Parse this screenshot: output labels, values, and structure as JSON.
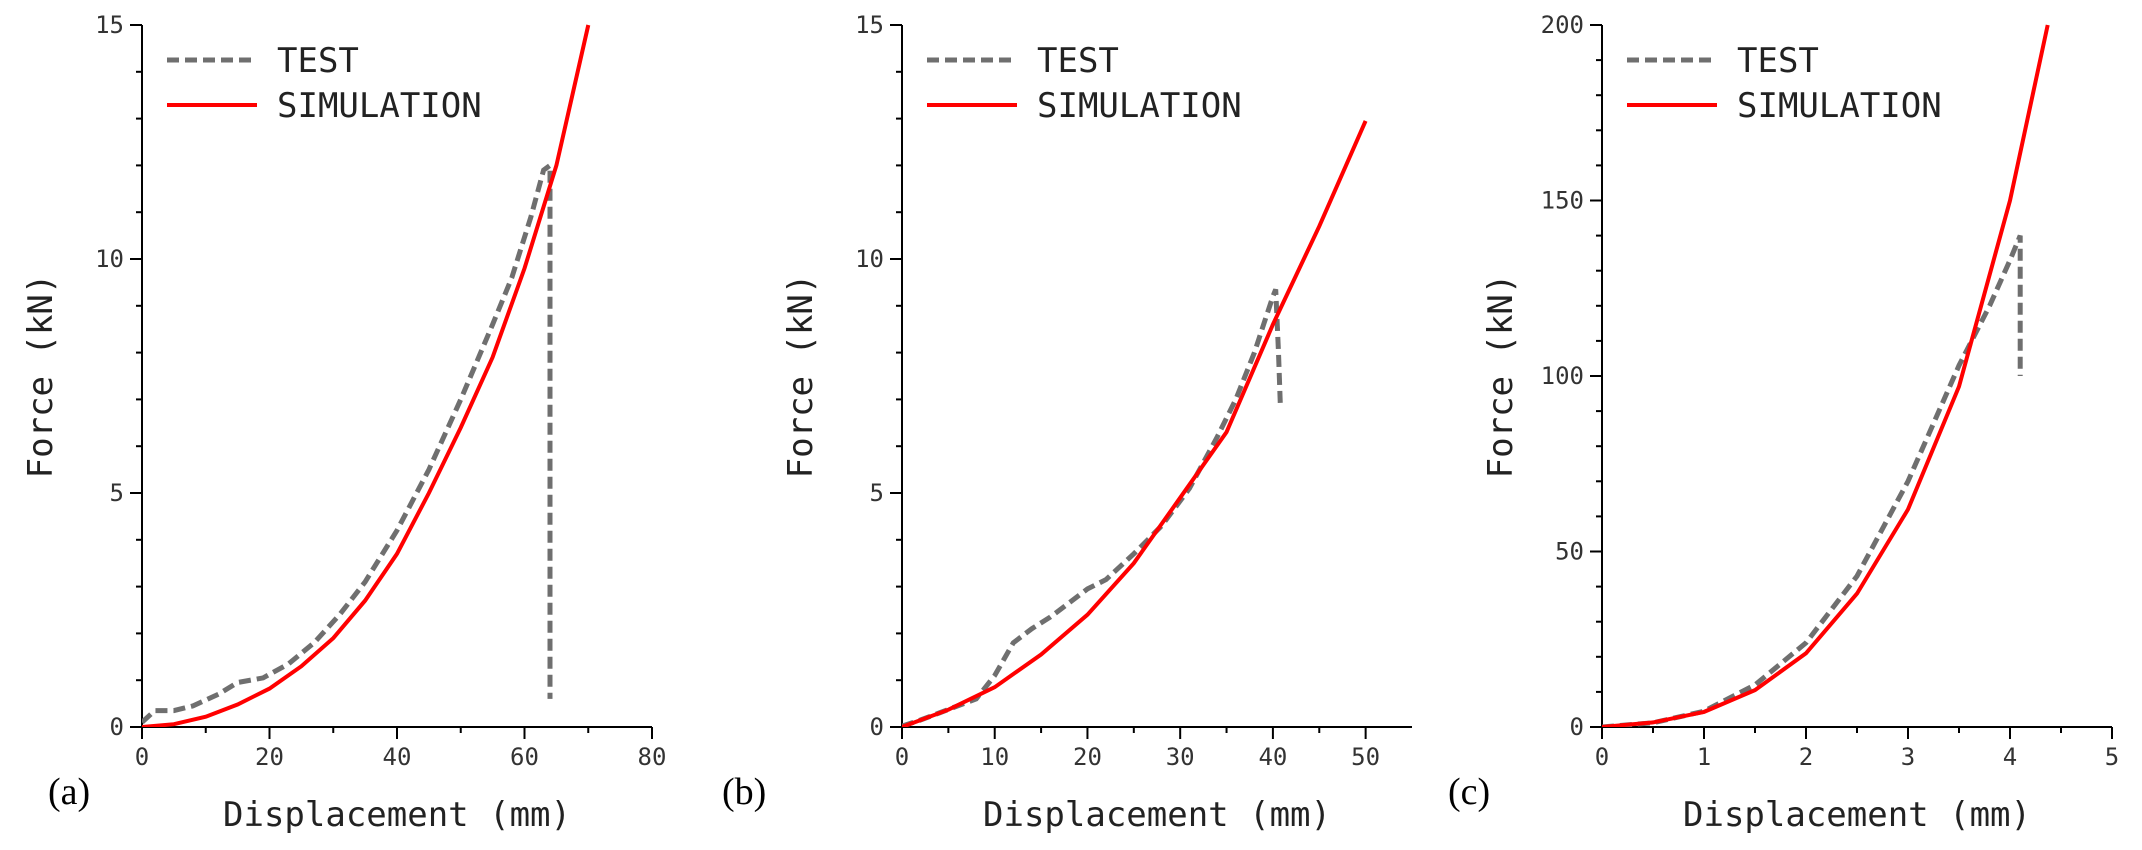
{
  "chart_data": [
    {
      "type": "line",
      "panel_label": "(a)",
      "xlabel": "Displacement (mm)",
      "ylabel": "Force (kN)",
      "xlim": [
        0,
        80
      ],
      "ylim": [
        0,
        15
      ],
      "xticks": [
        0,
        20,
        40,
        60,
        80
      ],
      "yticks": [
        0,
        5,
        10,
        15
      ],
      "legend_position": "top-left",
      "series": [
        {
          "name": "TEST",
          "color": "#6f6f6f",
          "style": "dashed",
          "points": [
            [
              0,
              0.1
            ],
            [
              2,
              0.35
            ],
            [
              5,
              0.35
            ],
            [
              8,
              0.45
            ],
            [
              12,
              0.7
            ],
            [
              15,
              0.95
            ],
            [
              19,
              1.05
            ],
            [
              23,
              1.35
            ],
            [
              27,
              1.8
            ],
            [
              31,
              2.4
            ],
            [
              35,
              3.1
            ],
            [
              40,
              4.2
            ],
            [
              45,
              5.5
            ],
            [
              50,
              7.0
            ],
            [
              55,
              8.6
            ],
            [
              58,
              9.6
            ],
            [
              61,
              10.9
            ],
            [
              63,
              11.9
            ],
            [
              64,
              12.0
            ],
            [
              64,
              0.6
            ]
          ]
        },
        {
          "name": "SIMULATION",
          "color": "#ff0000",
          "style": "solid",
          "points": [
            [
              0,
              0
            ],
            [
              5,
              0.06
            ],
            [
              10,
              0.22
            ],
            [
              15,
              0.48
            ],
            [
              20,
              0.82
            ],
            [
              25,
              1.3
            ],
            [
              30,
              1.9
            ],
            [
              35,
              2.7
            ],
            [
              40,
              3.7
            ],
            [
              45,
              5.0
            ],
            [
              50,
              6.4
            ],
            [
              55,
              7.9
            ],
            [
              60,
              9.8
            ],
            [
              65,
              12.0
            ],
            [
              70,
              15.0
            ]
          ]
        }
      ]
    },
    {
      "type": "line",
      "panel_label": "(b)",
      "xlabel": "Displacement (mm)",
      "ylabel": "Force (kN)",
      "xlim": [
        0,
        55
      ],
      "ylim": [
        0,
        15
      ],
      "xticks": [
        0,
        10,
        20,
        30,
        40,
        50
      ],
      "yticks": [
        0,
        5,
        10,
        15
      ],
      "legend_position": "top-left",
      "series": [
        {
          "name": "TEST",
          "color": "#6f6f6f",
          "style": "dashed",
          "points": [
            [
              0,
              0.02
            ],
            [
              2,
              0.15
            ],
            [
              4,
              0.3
            ],
            [
              6,
              0.45
            ],
            [
              8,
              0.6
            ],
            [
              10,
              1.1
            ],
            [
              12,
              1.8
            ],
            [
              14,
              2.1
            ],
            [
              16,
              2.35
            ],
            [
              18,
              2.65
            ],
            [
              20,
              2.95
            ],
            [
              22,
              3.15
            ],
            [
              25,
              3.7
            ],
            [
              28,
              4.3
            ],
            [
              31,
              5.1
            ],
            [
              34,
              6.2
            ],
            [
              36,
              7.0
            ],
            [
              38,
              8.0
            ],
            [
              39,
              8.6
            ],
            [
              40,
              9.2
            ],
            [
              40.3,
              9.35
            ],
            [
              40.6,
              8.0
            ],
            [
              40.8,
              6.9
            ]
          ]
        },
        {
          "name": "SIMULATION",
          "color": "#ff0000",
          "style": "solid",
          "points": [
            [
              0,
              0
            ],
            [
              5,
              0.37
            ],
            [
              10,
              0.85
            ],
            [
              15,
              1.55
            ],
            [
              20,
              2.4
            ],
            [
              25,
              3.5
            ],
            [
              30,
              4.9
            ],
            [
              35,
              6.3
            ],
            [
              40,
              8.6
            ],
            [
              45,
              10.7
            ],
            [
              50,
              12.95
            ]
          ]
        }
      ]
    },
    {
      "type": "line",
      "panel_label": "(c)",
      "xlabel": "Displacement (mm)",
      "ylabel": "Force (kN)",
      "xlim": [
        0,
        5
      ],
      "ylim": [
        0,
        200
      ],
      "xticks": [
        0,
        1,
        2,
        3,
        4,
        5
      ],
      "yticks": [
        0,
        50,
        100,
        150,
        200
      ],
      "legend_position": "top-left",
      "series": [
        {
          "name": "TEST",
          "color": "#6f6f6f",
          "style": "dashed",
          "points": [
            [
              0,
              0
            ],
            [
              0.5,
              1.2
            ],
            [
              1.0,
              4.5
            ],
            [
              1.5,
              12
            ],
            [
              2.0,
              24
            ],
            [
              2.5,
              43
            ],
            [
              3.0,
              70
            ],
            [
              3.5,
              103
            ],
            [
              3.8,
              120
            ],
            [
              4.0,
              133
            ],
            [
              4.1,
              140
            ],
            [
              4.1,
              100
            ]
          ]
        },
        {
          "name": "SIMULATION",
          "color": "#ff0000",
          "style": "solid",
          "points": [
            [
              0,
              0
            ],
            [
              0.5,
              1.3
            ],
            [
              1.0,
              4.3
            ],
            [
              1.5,
              10.5
            ],
            [
              2.0,
              21
            ],
            [
              2.5,
              38
            ],
            [
              3.0,
              62
            ],
            [
              3.5,
              97
            ],
            [
              4.0,
              150
            ],
            [
              4.37,
              200
            ]
          ]
        }
      ]
    }
  ]
}
